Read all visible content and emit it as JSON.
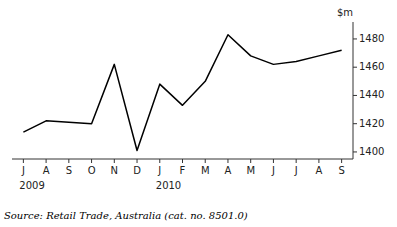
{
  "chart_data": {
    "type": "line",
    "y_label": "$m",
    "source": "Source: Retail Trade, Australia (cat. no. 8501.0)",
    "categories": [
      "J",
      "A",
      "S",
      "O",
      "N",
      "D",
      "J",
      "F",
      "M",
      "A",
      "M",
      "J",
      "J",
      "A",
      "S"
    ],
    "values": [
      1414,
      1422,
      1421,
      1420,
      1462,
      1401,
      1448,
      1433,
      1450,
      1483,
      1468,
      1462,
      1464,
      1468,
      1472
    ],
    "color": "#000000",
    "ylim": [
      1395,
      1492
    ],
    "yticks": [
      1400,
      1420,
      1440,
      1460,
      1480
    ],
    "grid": false,
    "annotations": [
      {
        "text": "2009",
        "x": 0
      },
      {
        "text": "2010",
        "x": 6
      }
    ]
  }
}
